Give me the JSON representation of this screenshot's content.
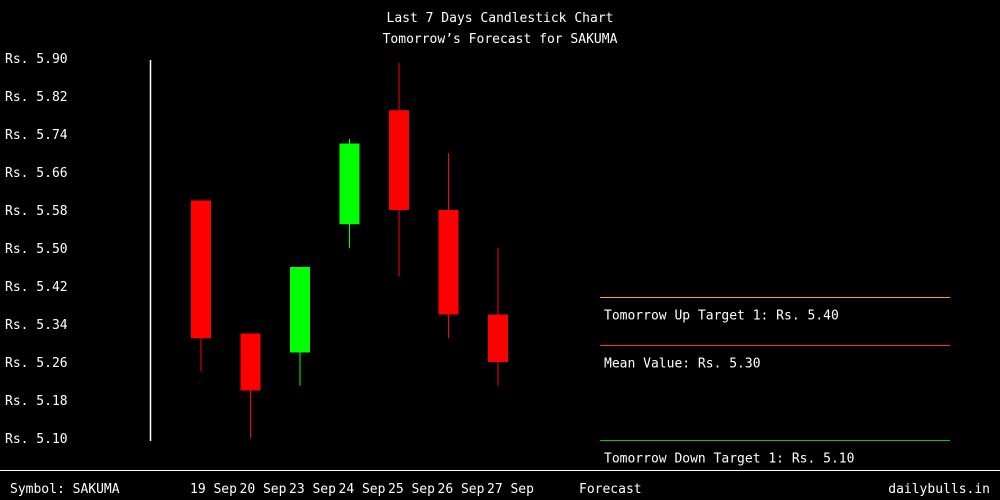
{
  "chart_data": {
    "type": "candlestick",
    "title": "Last 7 Days Candlestick Chart",
    "subtitle": "Tomorrow’s Forecast for SAKUMA",
    "y_tick_labels": [
      "Rs. 5.90",
      "Rs. 5.82",
      "Rs. 5.74",
      "Rs. 5.66",
      "Rs. 5.58",
      "Rs. 5.50",
      "Rs. 5.42",
      "Rs. 5.34",
      "Rs. 5.26",
      "Rs. 5.18",
      "Rs. 5.10"
    ],
    "y_ticks": [
      5.9,
      5.82,
      5.74,
      5.66,
      5.58,
      5.5,
      5.42,
      5.34,
      5.26,
      5.18,
      5.1
    ],
    "ylim": [
      5.1,
      5.9
    ],
    "categories": [
      "19 Sep",
      "20 Sep",
      "23 Sep",
      "24 Sep",
      "25 Sep",
      "26 Sep",
      "27 Sep"
    ],
    "candles": [
      {
        "date": "19 Sep",
        "open": 5.6,
        "close": 5.31,
        "high": 5.6,
        "low": 5.24
      },
      {
        "date": "20 Sep",
        "open": 5.32,
        "close": 5.2,
        "high": 5.32,
        "low": 5.1
      },
      {
        "date": "23 Sep",
        "open": 5.28,
        "close": 5.46,
        "high": 5.46,
        "low": 5.21
      },
      {
        "date": "24 Sep",
        "open": 5.55,
        "close": 5.72,
        "high": 5.73,
        "low": 5.5
      },
      {
        "date": "25 Sep",
        "open": 5.79,
        "close": 5.58,
        "high": 5.89,
        "low": 5.44
      },
      {
        "date": "26 Sep",
        "open": 5.58,
        "close": 5.36,
        "high": 5.7,
        "low": 5.31
      },
      {
        "date": "27 Sep",
        "open": 5.36,
        "close": 5.26,
        "high": 5.5,
        "low": 5.21
      }
    ],
    "up_color": "#00ff00",
    "down_color": "#ff0000",
    "forecast_label": "Forecast",
    "forecast_lines": [
      {
        "label": "Tomorrow Up Target 1: Rs. 5.40",
        "value": 5.4,
        "color": "#ffa500"
      },
      {
        "label": "Mean Value: Rs. 5.30",
        "value": 5.3,
        "color": "#ff3300"
      },
      {
        "label": "Tomorrow Down Target 1: Rs. 5.10",
        "value": 5.1,
        "color": "#00cc00"
      }
    ]
  },
  "footer": {
    "symbol": "Symbol: SAKUMA",
    "site": "dailybulls.in"
  }
}
